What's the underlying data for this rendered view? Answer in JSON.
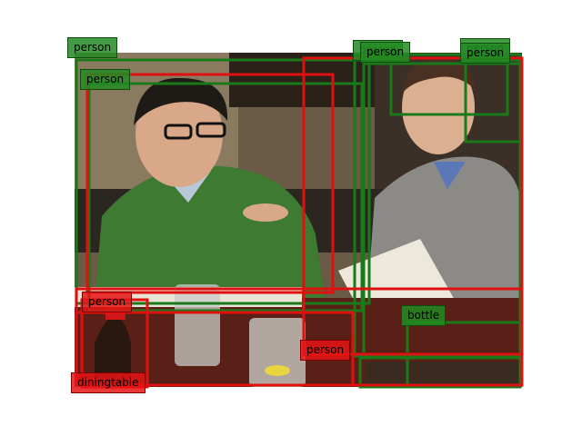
{
  "image": {
    "description": ""
  },
  "colors": {
    "green": "#1a7a1a",
    "red": "#e01010"
  },
  "boxes": [
    {
      "label": "person",
      "color": "green",
      "geom": "a"
    },
    {
      "label": "person",
      "color": "green",
      "geom": "b"
    },
    {
      "label": "person",
      "color": "green",
      "geom": "c"
    },
    {
      "label": "person",
      "color": "green",
      "geom": "d"
    },
    {
      "label": "person",
      "color": "green",
      "geom": "e"
    },
    {
      "label": "person",
      "color": "green",
      "geom": "f"
    },
    {
      "label": "person",
      "color": "red",
      "geom": "g"
    },
    {
      "label": "person",
      "color": "red",
      "geom": "h"
    },
    {
      "label": "person",
      "color": "red",
      "geom": "i"
    },
    {
      "label": "bottle",
      "color": "green",
      "geom": "j"
    },
    {
      "label": "diningtable",
      "color": "red",
      "geom": "k"
    },
    {
      "label": "person",
      "color": "red",
      "geom": "l"
    }
  ]
}
